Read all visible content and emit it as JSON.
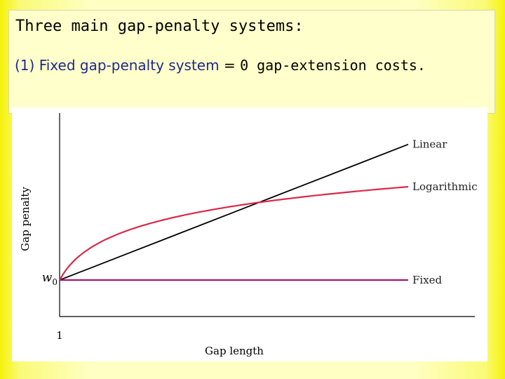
{
  "slide": {
    "title": "Three main gap-penalty systems:",
    "bullet": {
      "number": "(1)",
      "text_lead": "Fixed gap-penalty system",
      "text_eq": "=",
      "text_tail": "0 gap-extension costs."
    }
  },
  "colors": {
    "linear": "#000000",
    "logarithmic": "#d82a4a",
    "fixed": "#a6176e",
    "axis": "#000000",
    "title_blue": "#1e2a8a"
  },
  "chart_data": {
    "type": "line",
    "title": "",
    "xlabel": "Gap length",
    "ylabel": "Gap penalty",
    "x_tick_label": "1",
    "y_tick_label": "w",
    "y_tick_subscript": "0",
    "x": [
      1,
      1.5,
      2,
      3,
      4,
      6,
      8,
      11
    ],
    "xlim": [
      1,
      11
    ],
    "ylim": [
      0,
      4.8
    ],
    "grid": false,
    "legend": "inline-right",
    "series": [
      {
        "name": "Linear",
        "values": [
          0,
          0.2,
          0.4,
          0.8,
          1.2,
          2.0,
          2.8,
          4.0
        ]
      },
      {
        "name": "Logarithmic",
        "values": [
          0,
          0.95,
          1.25,
          1.65,
          1.95,
          2.35,
          2.55,
          2.75
        ]
      },
      {
        "name": "Fixed",
        "values": [
          0,
          0,
          0,
          0,
          0,
          0,
          0,
          0
        ]
      }
    ]
  }
}
